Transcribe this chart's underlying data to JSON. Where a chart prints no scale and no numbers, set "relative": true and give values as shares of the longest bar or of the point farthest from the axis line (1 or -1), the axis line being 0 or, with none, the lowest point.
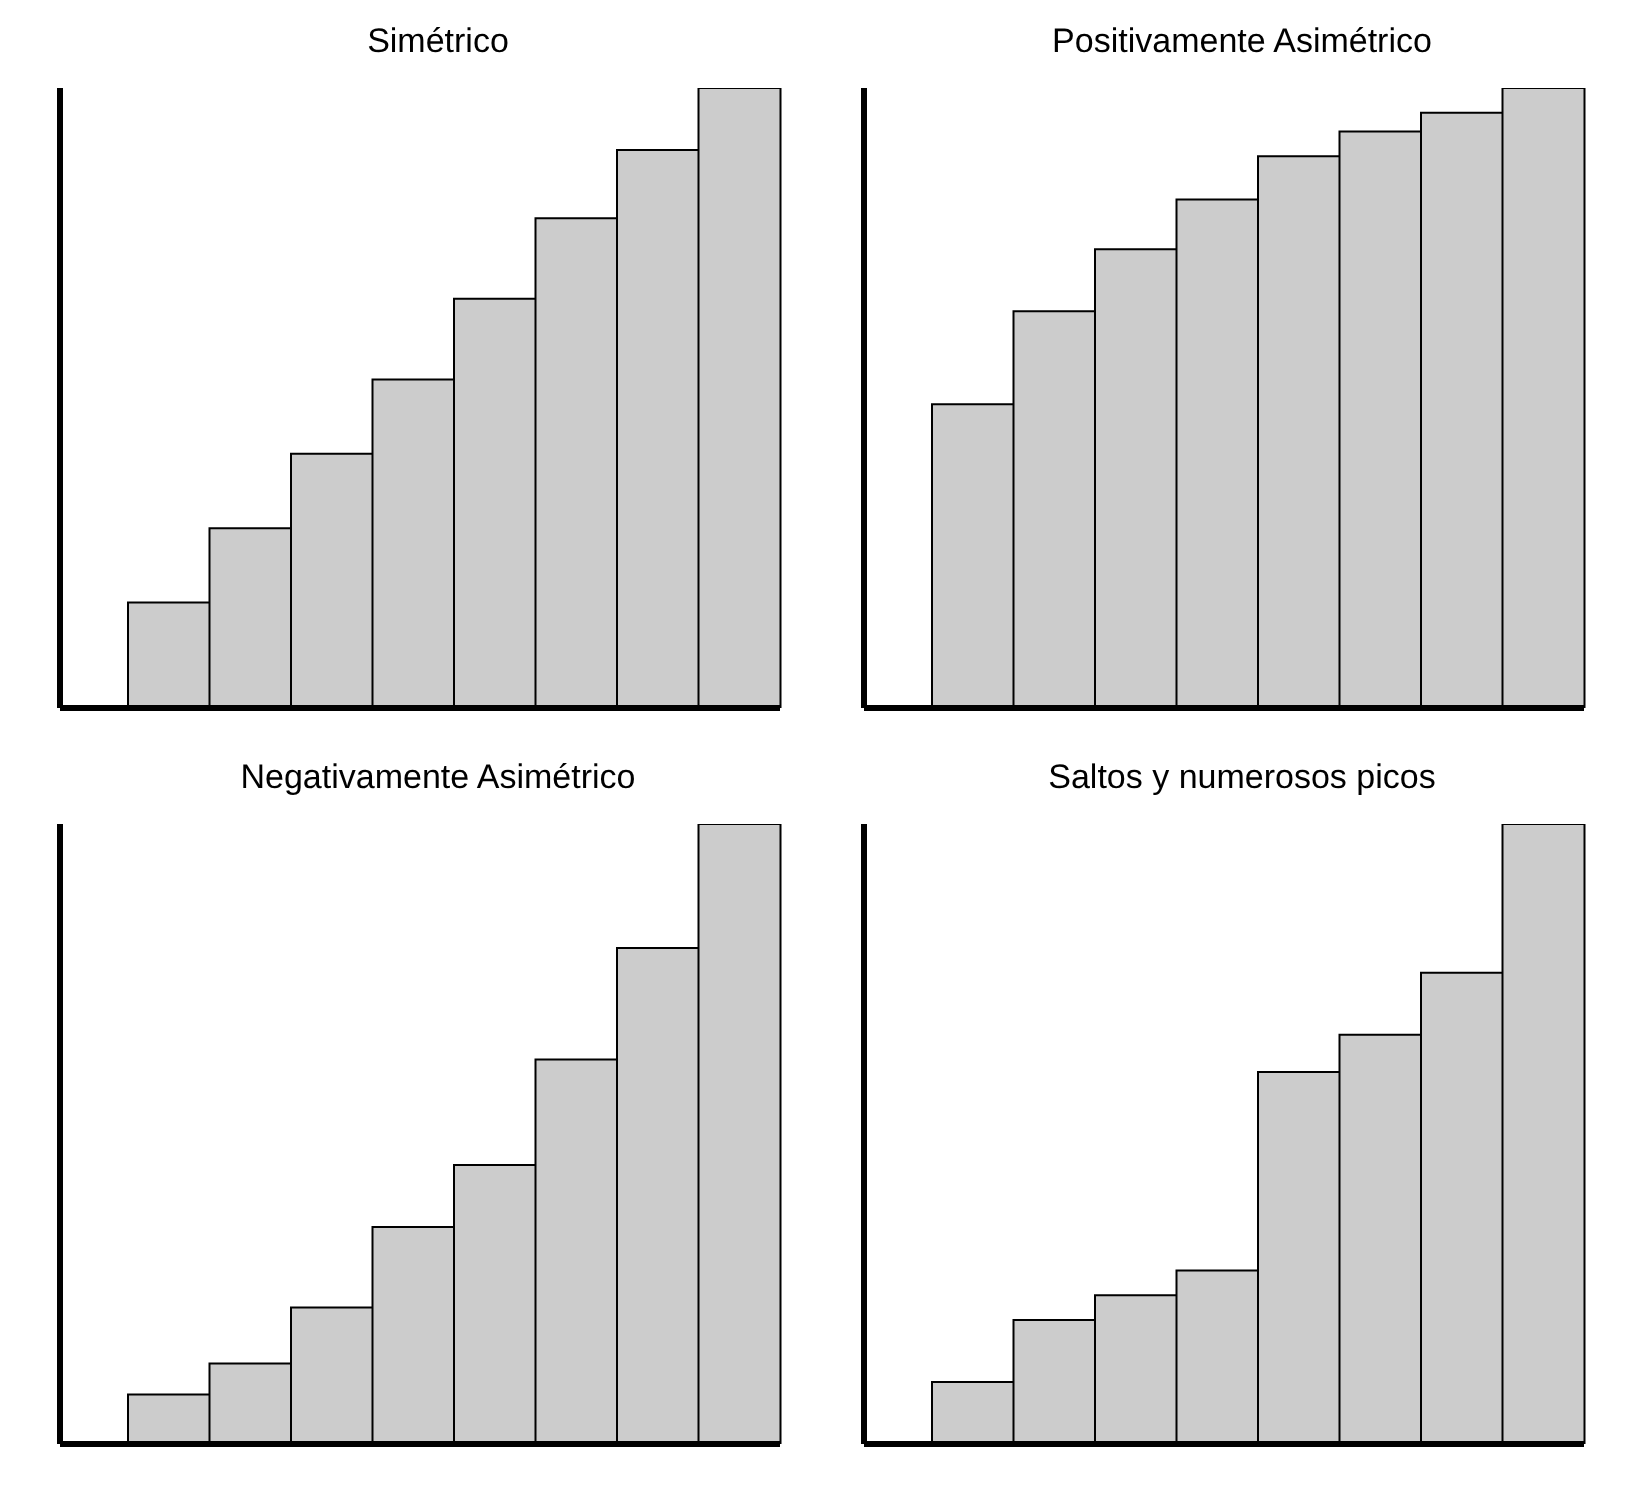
{
  "chart_data": [
    {
      "type": "bar",
      "title": "Simétrico",
      "relative": true,
      "categories": [
        null,
        null,
        null,
        null,
        null,
        null,
        null,
        null
      ],
      "values": [
        0.17,
        0.29,
        0.41,
        0.53,
        0.66,
        0.79,
        0.9,
        1
      ],
      "color": "#cccccc",
      "grid": false,
      "legend": false
    },
    {
      "type": "bar",
      "title": "Positivamente Asimétrico",
      "relative": true,
      "categories": [
        null,
        null,
        null,
        null,
        null,
        null,
        null,
        null
      ],
      "values": [
        0.49,
        0.64,
        0.74,
        0.82,
        0.89,
        0.93,
        0.96,
        1
      ],
      "color": "#cccccc",
      "grid": false,
      "legend": false
    },
    {
      "type": "bar",
      "title": "Negativamente Asimétrico",
      "relative": true,
      "categories": [
        null,
        null,
        null,
        null,
        null,
        null,
        null,
        null
      ],
      "values": [
        0.08,
        0.13,
        0.22,
        0.35,
        0.45,
        0.62,
        0.8,
        1
      ],
      "color": "#cccccc",
      "grid": false,
      "legend": false
    },
    {
      "type": "bar",
      "title": "Saltos y numerosos picos",
      "relative": true,
      "categories": [
        null,
        null,
        null,
        null,
        null,
        null,
        null,
        null
      ],
      "values": [
        0.1,
        0.2,
        0.24,
        0.28,
        0.6,
        0.66,
        0.76,
        1
      ],
      "color": "#cccccc",
      "grid": false,
      "legend": false
    }
  ]
}
